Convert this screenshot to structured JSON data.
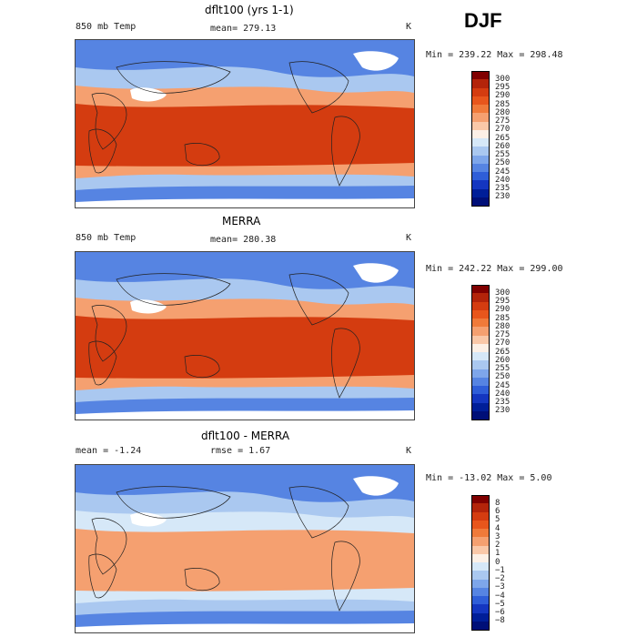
{
  "season": "DJF",
  "panels": [
    {
      "id": "model",
      "title": "dflt100 (yrs 1-1)",
      "left_label": "850 mb Temp",
      "center_label": "mean= 279.13",
      "unit": "K",
      "minmax": "Min = 239.22 Max = 298.48",
      "colorbar": {
        "labels": [
          "300",
          "295",
          "290",
          "285",
          "280",
          "275",
          "270",
          "265",
          "260",
          "255",
          "250",
          "245",
          "240",
          "235",
          "230"
        ],
        "colors": [
          "#800000",
          "#b3240a",
          "#d43c10",
          "#e8561c",
          "#f07a3a",
          "#f5a070",
          "#fac8a8",
          "#fdf0e6",
          "#d6e8f8",
          "#aac8f0",
          "#7ea6ea",
          "#5684e2",
          "#2f5ed8",
          "#1436c0",
          "#001e98",
          "#000f78"
        ]
      },
      "map_colors": {
        "high": "#d43c10",
        "mid": "#f5a070",
        "low": "#aac8f0",
        "cold": "#5684e2",
        "ice": "#ffffff"
      }
    },
    {
      "id": "obs",
      "title": "MERRA",
      "left_label": "850 mb Temp",
      "center_label": "mean= 280.38",
      "unit": "K",
      "minmax": "Min = 242.22 Max = 299.00",
      "colorbar": {
        "labels": [
          "300",
          "295",
          "290",
          "285",
          "280",
          "275",
          "270",
          "265",
          "260",
          "255",
          "250",
          "245",
          "240",
          "235",
          "230"
        ],
        "colors": [
          "#800000",
          "#b3240a",
          "#d43c10",
          "#e8561c",
          "#f07a3a",
          "#f5a070",
          "#fac8a8",
          "#fdf0e6",
          "#d6e8f8",
          "#aac8f0",
          "#7ea6ea",
          "#5684e2",
          "#2f5ed8",
          "#1436c0",
          "#001e98",
          "#000f78"
        ]
      },
      "map_colors": {
        "high": "#d43c10",
        "mid": "#f5a070",
        "low": "#aac8f0",
        "cold": "#5684e2",
        "ice": "#ffffff"
      }
    },
    {
      "id": "diff",
      "title": "dflt100 - MERRA",
      "left_label": "mean =   -1.24",
      "center_label": "rmse =    1.67",
      "unit": "K",
      "minmax": "Min = -13.02 Max =    5.00",
      "colorbar": {
        "labels": [
          "8",
          "6",
          "5",
          "4",
          "3",
          "2",
          "1",
          "0",
          "−1",
          "−2",
          "−3",
          "−4",
          "−5",
          "−6",
          "−8"
        ],
        "colors": [
          "#800000",
          "#b3240a",
          "#d43c10",
          "#e8561c",
          "#f07a3a",
          "#f5a070",
          "#fac8a8",
          "#fdf0e6",
          "#d6e8f8",
          "#aac8f0",
          "#7ea6ea",
          "#5684e2",
          "#2f5ed8",
          "#1436c0",
          "#001e98",
          "#000f78"
        ]
      },
      "map_colors": {
        "high": "#f5a070",
        "mid": "#d6e8f8",
        "low": "#aac8f0",
        "cold": "#5684e2",
        "ice": "#ffffff"
      }
    }
  ]
}
